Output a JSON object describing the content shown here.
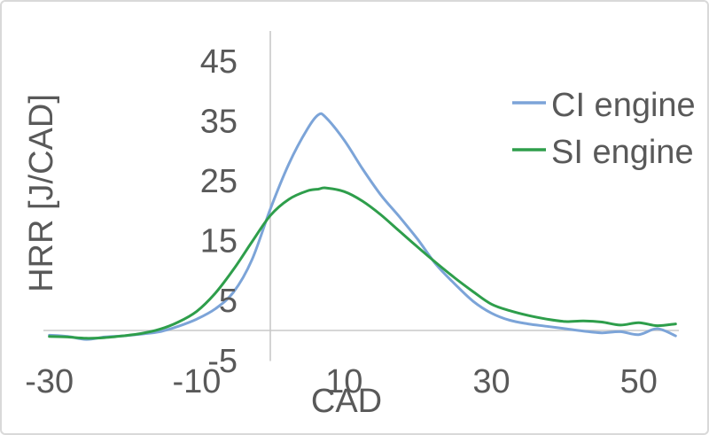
{
  "chart_data": {
    "type": "line",
    "title": "",
    "xlabel": "CAD",
    "ylabel": "HRR [J/CAD]",
    "x": [
      -30,
      -27.5,
      -25,
      -22.5,
      -20,
      -17.5,
      -15,
      -12.5,
      -10,
      -7.5,
      -5,
      -2.5,
      0,
      2.5,
      5,
      6.5,
      7.5,
      10,
      12.5,
      15,
      17.5,
      20,
      22.5,
      25,
      27.5,
      30,
      32.5,
      35,
      37.5,
      40,
      42.5,
      45,
      47.5,
      50,
      52.5,
      55
    ],
    "series": [
      {
        "name": "CI engine",
        "color": "#7ca4d8",
        "values": [
          -0.8,
          -1.0,
          -1.5,
          -1.1,
          -0.9,
          -0.6,
          -0.2,
          0.7,
          1.9,
          3.6,
          6.4,
          11.8,
          20.3,
          27.8,
          33.6,
          36.0,
          35.6,
          31.8,
          27.0,
          22.6,
          19.0,
          15.2,
          11.0,
          7.8,
          4.9,
          2.9,
          1.7,
          1.1,
          0.7,
          0.3,
          -0.1,
          -0.4,
          -0.2,
          -0.7,
          0.3,
          -0.9
        ]
      },
      {
        "name": "SI engine",
        "color": "#2e9e4b",
        "values": [
          -1.0,
          -1.1,
          -1.3,
          -1.2,
          -0.9,
          -0.5,
          0.2,
          1.4,
          3.2,
          6.2,
          10.2,
          14.8,
          19.2,
          21.9,
          23.3,
          23.6,
          23.8,
          23.2,
          21.6,
          19.3,
          16.6,
          13.9,
          11.3,
          8.8,
          6.5,
          4.4,
          3.3,
          2.5,
          1.9,
          1.5,
          1.6,
          1.4,
          0.9,
          1.3,
          0.8,
          1.1
        ]
      }
    ],
    "x_ticks": [
      -30,
      -10,
      10,
      30,
      50
    ],
    "y_ticks": [
      45,
      35,
      25,
      15,
      5,
      -5
    ],
    "xlim": [
      -30,
      55
    ],
    "ylim": [
      -5,
      48
    ],
    "grid": false,
    "legend_position": "right",
    "axis_color": "#c8c8c8",
    "text_color": "#595959"
  }
}
